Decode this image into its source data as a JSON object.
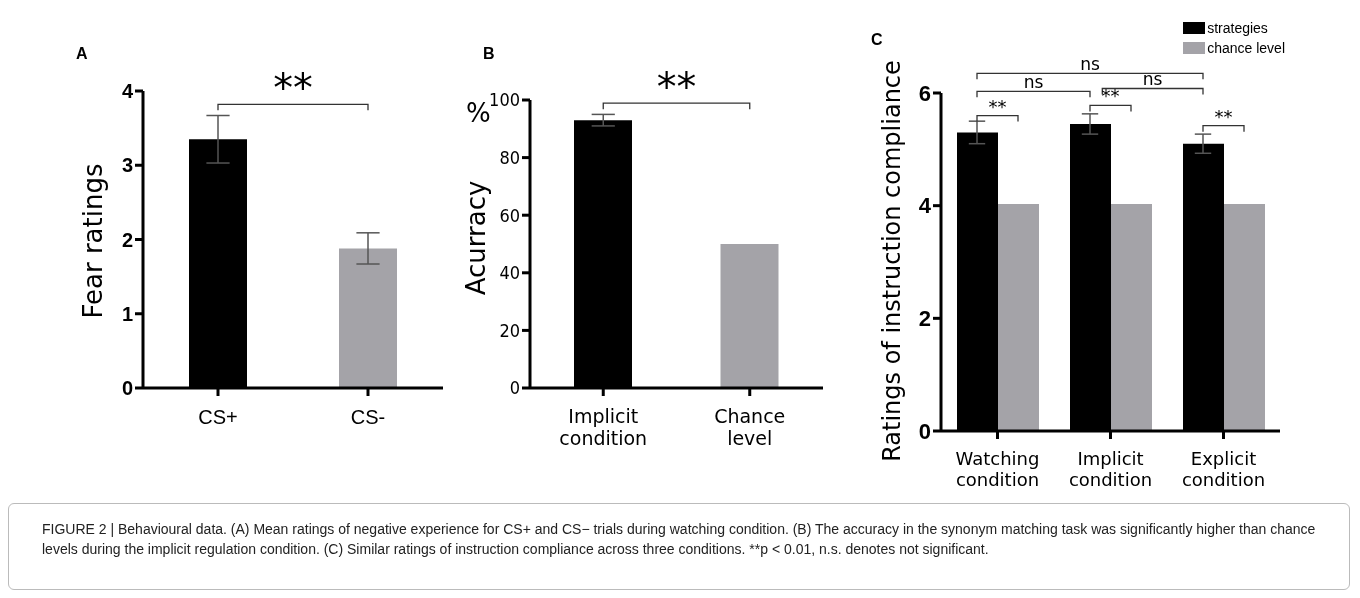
{
  "chart_data": [
    {
      "type": "bar",
      "title": "A",
      "categories": [
        "CS+",
        "CS-"
      ],
      "values": [
        3.35,
        1.88
      ],
      "colors": [
        "#000000",
        "#a4a3a8"
      ],
      "errors": [
        0.32,
        0.21
      ],
      "ylabel": "Fear ratings",
      "ylim": [
        0,
        4
      ],
      "yticks": [
        0,
        1,
        2,
        3,
        4
      ],
      "grid": false,
      "legend": false,
      "annotations": [
        "**",
        "FIGURE 2 | Behavioural data. (A) Mean ratings of negative experience for CS+ and CS− trials during watching condition. (B) The accuracy in the synonym matching task was significantly higher than chance levels during the implicit regulation condition. (C) Similar ratings of instruction compliance across three conditions. **p < 0.01, n.s. denotes not significant."
      ]
    },
    {
      "type": "bar",
      "title": "B",
      "categories": [
        "Implicit condition",
        "Chance level"
      ],
      "values": [
        93,
        50
      ],
      "colors": [
        "#000000",
        "#a4a3a8"
      ],
      "errors": [
        2,
        null
      ],
      "ylabel": "Acurracy",
      "ylim": [
        0,
        100
      ],
      "yticks": [
        0,
        20,
        40,
        60,
        80,
        100
      ],
      "grid": false,
      "legend": false,
      "annotations": [
        "**",
        "%"
      ]
    },
    {
      "type": "bar",
      "title": "C",
      "categories": [
        "Watching condition",
        "Implicit condition",
        "Explicit condition"
      ],
      "ylabel": "Ratings of instruction compliance",
      "ylim": [
        0,
        6
      ],
      "yticks": [
        0,
        2,
        4,
        6
      ],
      "grid": false,
      "legend": "top right",
      "series": [
        {
          "name": "strategies",
          "color": "#000000",
          "values": [
            5.3,
            5.45,
            5.1
          ],
          "errors": [
            0.2,
            0.18,
            0.17
          ]
        },
        {
          "name": "chance level",
          "color": "#a4a3a8",
          "values": [
            4.03,
            4.03,
            4.03
          ]
        }
      ],
      "annotations": [
        "ns",
        "ns",
        "ns",
        "**",
        "**",
        "**"
      ]
    }
  ]
}
